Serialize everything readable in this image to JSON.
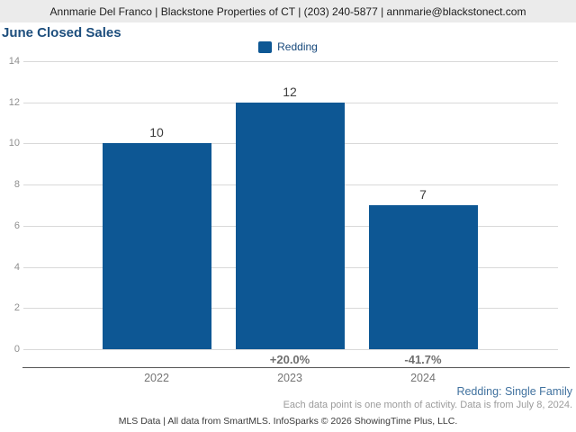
{
  "header": {
    "contact_line": "Annmarie Del Franco | Blackstone Properties of CT | (203) 240-5877 | annmarie@blackstonect.com"
  },
  "title": "June Closed Sales",
  "legend": {
    "label": "Redding",
    "swatch_color": "#0d5794"
  },
  "chart_data": {
    "type": "bar",
    "title": "June Closed Sales",
    "categories": [
      "2022",
      "2023",
      "2024"
    ],
    "values": [
      10,
      12,
      7
    ],
    "value_labels": [
      "10",
      "12",
      "7"
    ],
    "pct_change": [
      "",
      "+20.0%",
      "-41.7%"
    ],
    "series": [
      {
        "name": "Redding",
        "values": [
          10,
          12,
          7
        ]
      }
    ],
    "xlabel": "",
    "ylabel": "",
    "ylim": [
      0,
      14
    ],
    "yticks": [
      0,
      2,
      4,
      6,
      8,
      10,
      12,
      14
    ],
    "grid": true,
    "legend_position": "top-center",
    "bar_color": "#0d5794"
  },
  "footnotes": {
    "series_note": "Redding: Single Family",
    "data_note": "Each data point is one month of activity. Data is from July 8, 2024.",
    "mls_note": "MLS Data | All data from SmartMLS. InfoSparks © 2026 ShowingTime Plus, LLC."
  },
  "colors": {
    "bar": "#0d5794",
    "title": "#1d4e7d",
    "header_background": "#ebebeb",
    "gridline": "#d9d9d9",
    "series_note": "#41729f"
  }
}
